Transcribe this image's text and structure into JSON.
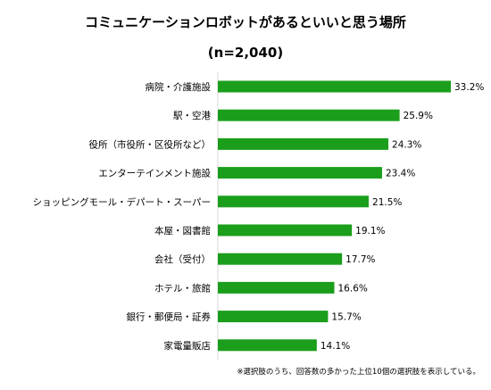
{
  "chart_data": {
    "type": "bar",
    "orientation": "horizontal",
    "title": "コミュニケーションロボットがあるといいと思う場所",
    "subtitle": "(n=2,040)",
    "categories": [
      "病院・介護施設",
      "駅・空港",
      "役所（市役所・区役所など）",
      "エンターテインメント施設",
      "ショッピングモール・デパート・スーパー",
      "本屋・図書館",
      "会社（受付）",
      "ホテル・旅館",
      "銀行・郵便局・証券",
      "家電量販店"
    ],
    "values": [
      33.2,
      25.9,
      24.3,
      23.4,
      21.5,
      19.1,
      17.7,
      16.6,
      15.7,
      14.1
    ],
    "value_labels": [
      "33.2%",
      "25.9%",
      "24.3%",
      "23.4%",
      "21.5%",
      "19.1%",
      "17.7%",
      "16.6%",
      "15.7%",
      "14.1%"
    ],
    "unit": "%",
    "xlim": [
      0,
      33.2
    ],
    "grid": false,
    "legend": "none",
    "bar_color": "#1b9e1b",
    "footnote": "※選択肢のうち、回答数の多かった上位10個の選択肢を表示している。"
  }
}
